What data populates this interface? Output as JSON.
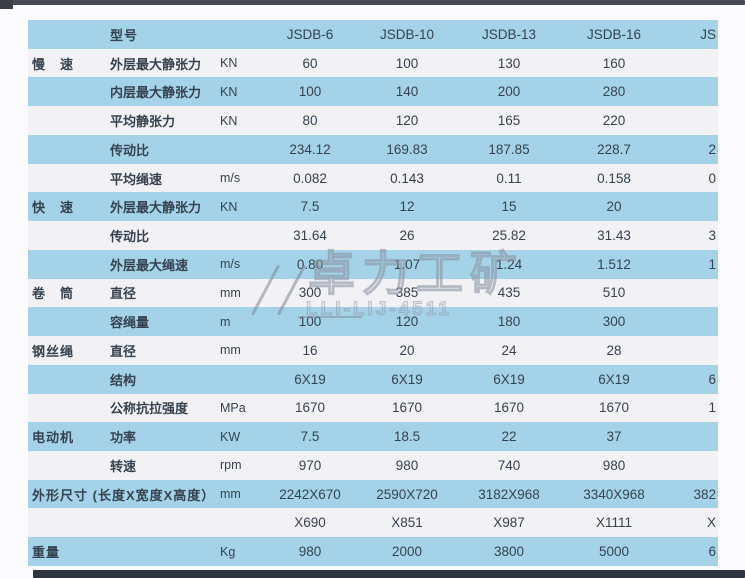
{
  "page": {
    "bg": "#fbfbfd",
    "top_bar_color": "#474a52",
    "bottom_bar_color": "#2e3440"
  },
  "table": {
    "colors": {
      "cyan_row": "#a4d3e9",
      "light_row": "#f2f2f5",
      "text": "#36424f"
    },
    "rows": [
      {
        "category": "",
        "param": "型号",
        "unit": "",
        "values": [
          "JSDB-6",
          "JSDB-10",
          "JSDB-13",
          "JSDB-16",
          "JS"
        ],
        "header": true
      },
      {
        "category": "慢　速",
        "param": "外层最大静张力",
        "unit": "KN",
        "values": [
          "60",
          "100",
          "130",
          "160",
          ""
        ]
      },
      {
        "category": "",
        "param": "内层最大静张力",
        "unit": "KN",
        "values": [
          "100",
          "140",
          "200",
          "280",
          ""
        ]
      },
      {
        "category": "",
        "param": "平均静张力",
        "unit": "KN",
        "values": [
          "80",
          "120",
          "165",
          "220",
          ""
        ]
      },
      {
        "category": "",
        "param": "传动比",
        "unit": "",
        "values": [
          "234.12",
          "169.83",
          "187.85",
          "228.7",
          "2"
        ]
      },
      {
        "category": "",
        "param": "平均绳速",
        "unit": "m/s",
        "values": [
          "0.082",
          "0.143",
          "0.11",
          "0.158",
          "0"
        ]
      },
      {
        "category": "快　速",
        "param": "外层最大静张力",
        "unit": "KN",
        "values": [
          "7.5",
          "12",
          "15",
          "20",
          ""
        ]
      },
      {
        "category": "",
        "param": "传动比",
        "unit": "",
        "values": [
          "31.64",
          "26",
          "25.82",
          "31.43",
          "3"
        ]
      },
      {
        "category": "",
        "param": "外层最大绳速",
        "unit": "m/s",
        "values": [
          "0.80",
          "1.07",
          "1.24",
          "1.512",
          "1"
        ]
      },
      {
        "category": "卷　筒",
        "param": "直径",
        "unit": "mm",
        "values": [
          "300",
          "385",
          "435",
          "510",
          ""
        ]
      },
      {
        "category": "",
        "param": "容绳量",
        "unit": "m",
        "values": [
          "100",
          "120",
          "180",
          "300",
          ""
        ]
      },
      {
        "category": "钢丝绳",
        "param": "直径",
        "unit": "mm",
        "values": [
          "16",
          "20",
          "24",
          "28",
          ""
        ]
      },
      {
        "category": "",
        "param": "结构",
        "unit": "",
        "values": [
          "6X19",
          "6X19",
          "6X19",
          "6X19",
          "6"
        ]
      },
      {
        "category": "",
        "param": "公称抗拉强度",
        "unit": "MPa",
        "values": [
          "1670",
          "1670",
          "1670",
          "1670",
          "1"
        ]
      },
      {
        "category": "电动机",
        "param": "功率",
        "unit": "KW",
        "values": [
          "7.5",
          "18.5",
          "22",
          "37",
          ""
        ]
      },
      {
        "category": "",
        "param": "转速",
        "unit": "rpm",
        "values": [
          "970",
          "980",
          "740",
          "980",
          ""
        ]
      },
      {
        "category": "外形尺寸 (长度X宽度X高度）",
        "param": "",
        "unit": "mm",
        "values": [
          "2242X670",
          "2590X720",
          "3182X968",
          "3340X968",
          "382"
        ]
      },
      {
        "category": "",
        "param": "",
        "unit": "",
        "values": [
          "X690",
          "X851",
          "X987",
          "X1111",
          "X"
        ]
      },
      {
        "category": "重量",
        "param": "",
        "unit": "Kg",
        "values": [
          "980",
          "2000",
          "3800",
          "5000",
          "6"
        ]
      }
    ]
  },
  "watermark": {
    "text": "卓力工矿",
    "caption": "LLI-LIJ-4511",
    "color": "#8e98a3"
  }
}
